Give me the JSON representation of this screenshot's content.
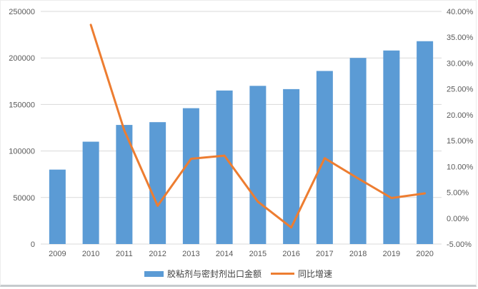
{
  "chart_data": {
    "type": "combo-bar-line",
    "title": "",
    "categories": [
      "2009",
      "2010",
      "2011",
      "2012",
      "2013",
      "2014",
      "2015",
      "2016",
      "2017",
      "2018",
      "2019",
      "2020"
    ],
    "series": [
      {
        "name": "胶粘剂与密封剂出口金额",
        "type": "bar",
        "axis": "left",
        "color": "#5B9BD5",
        "values": [
          80000,
          110000,
          128000,
          131000,
          146000,
          165000,
          170000,
          166500,
          186000,
          200000,
          208000,
          218000
        ]
      },
      {
        "name": "同比增速",
        "type": "line",
        "axis": "right",
        "color": "#ED7D31",
        "start_index": 1,
        "values": [
          37.4,
          17.0,
          2.4,
          11.5,
          12.1,
          3.2,
          -1.8,
          11.6,
          7.7,
          3.9,
          4.8
        ]
      }
    ],
    "left_axis": {
      "min": 0,
      "max": 250000,
      "step": 50000,
      "tick_labels": [
        "0",
        "50000",
        "100000",
        "150000",
        "200000",
        "250000"
      ]
    },
    "right_axis": {
      "min": -5,
      "max": 40,
      "step": 5,
      "tick_labels": [
        "-5.00%",
        "0.00%",
        "5.00%",
        "10.00%",
        "15.00%",
        "20.00%",
        "25.00%",
        "30.00%",
        "35.00%",
        "40.00%"
      ]
    },
    "grid": "horizontal",
    "legend_position": "bottom"
  },
  "legend": {
    "bar_label": "胶粘剂与密封剂出口金额",
    "line_label": "同比增速"
  },
  "colors": {
    "bar": "#5B9BD5",
    "line": "#ED7D31",
    "grid": "#D9D9D9",
    "axis_text": "#595959",
    "background": "#FFFFFF"
  }
}
